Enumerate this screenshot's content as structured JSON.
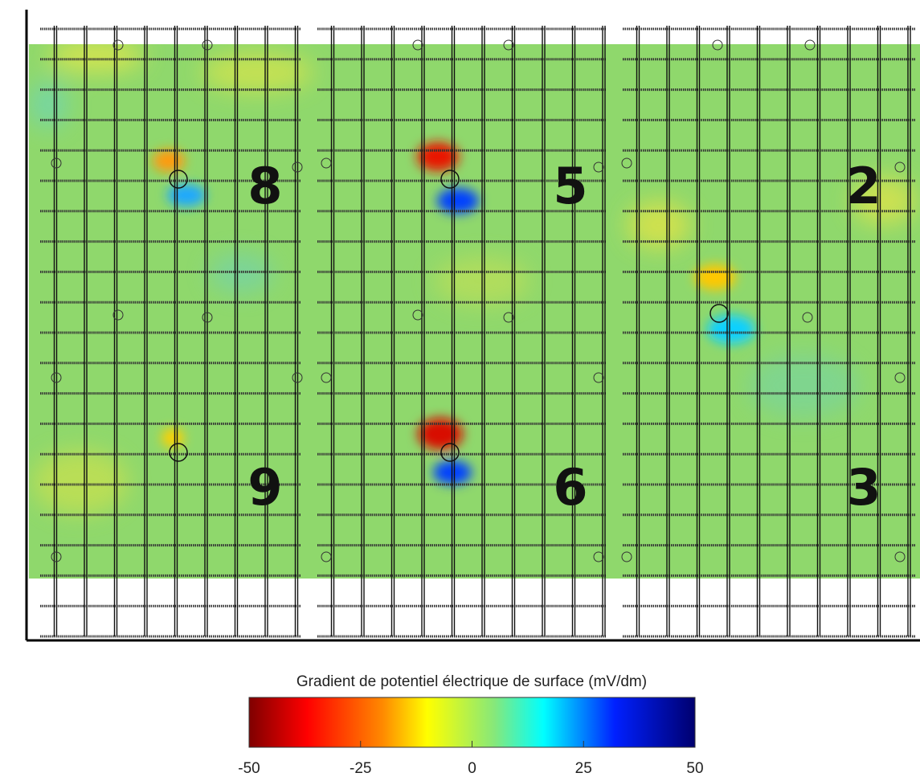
{
  "colorbar": {
    "title": "Gradient de potentiel électrique de surface (mV/dm)",
    "lim": [
      -50,
      50
    ],
    "ticks": [
      -50,
      -25,
      0,
      25,
      50
    ]
  },
  "zones": [
    {
      "label": "8"
    },
    {
      "label": "5"
    },
    {
      "label": "2"
    },
    {
      "label": "9"
    },
    {
      "label": "6"
    },
    {
      "label": "3"
    }
  ]
}
